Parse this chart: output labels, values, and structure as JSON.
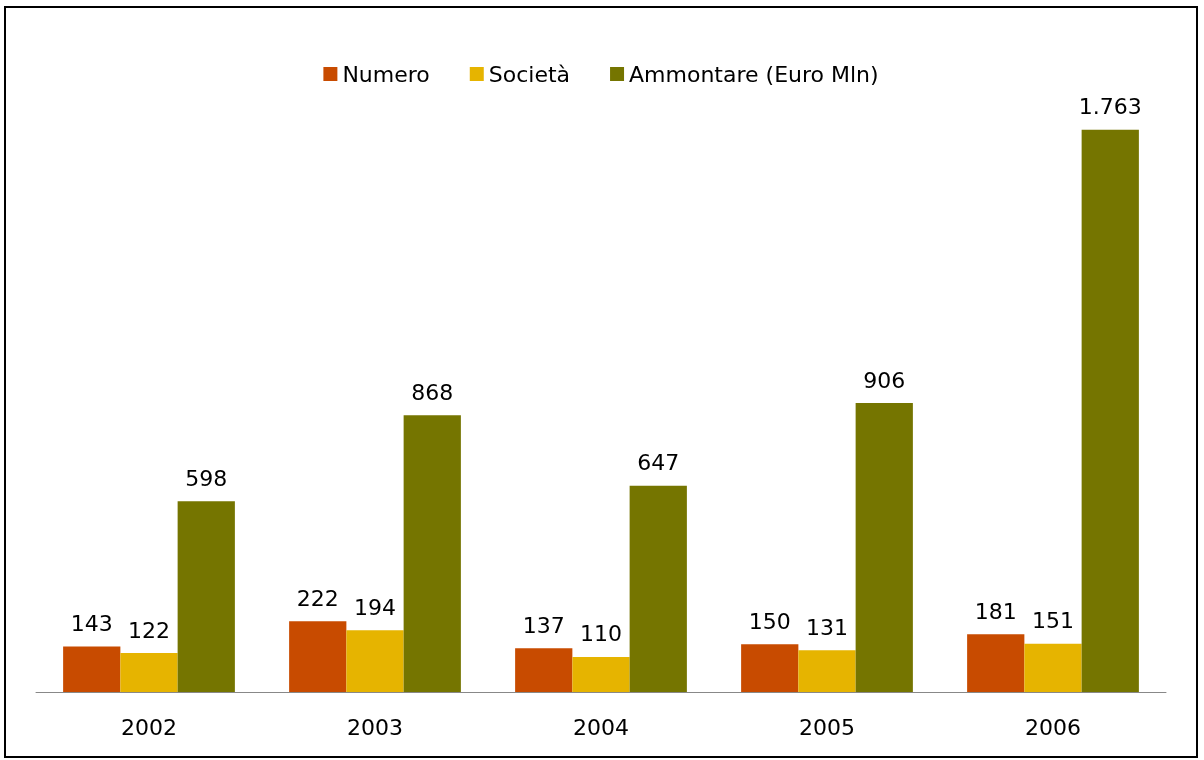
{
  "chart_data": {
    "type": "bar",
    "categories": [
      "2002",
      "2003",
      "2004",
      "2005",
      "2006"
    ],
    "series": [
      {
        "name": "Numero",
        "color": "#c84b00",
        "values": [
          143,
          222,
          137,
          150,
          181
        ],
        "value_labels": [
          "143",
          "222",
          "137",
          "150",
          "181"
        ]
      },
      {
        "name": "Società",
        "color": "#e6b400",
        "values": [
          122,
          194,
          110,
          131,
          151
        ],
        "value_labels": [
          "122",
          "194",
          "110",
          "131",
          "151"
        ]
      },
      {
        "name": "Ammontare (Euro Mln)",
        "color": "#757500",
        "values": [
          598,
          868,
          647,
          906,
          1763
        ],
        "value_labels": [
          "598",
          "868",
          "647",
          "906",
          "1.763"
        ]
      }
    ],
    "legend": "top"
  }
}
